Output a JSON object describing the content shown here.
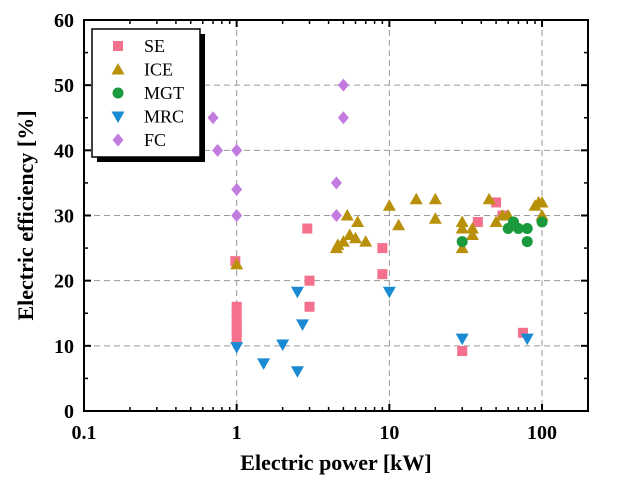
{
  "chart_data": {
    "type": "scatter",
    "title": "",
    "xlabel": "Electric power [kW]",
    "ylabel": "Electric efficiency [%]",
    "xscale": "log",
    "xlim": [
      0.1,
      200
    ],
    "ylim": [
      0,
      60
    ],
    "xticks": [
      0.1,
      1,
      10,
      100
    ],
    "xtick_labels": [
      "0.1",
      "1",
      "10",
      "100"
    ],
    "yticks": [
      0,
      10,
      20,
      30,
      40,
      50,
      60
    ],
    "ytick_labels": [
      "0",
      "10",
      "20",
      "30",
      "40",
      "50",
      "60"
    ],
    "grid": true,
    "legend_position": "top-left",
    "series": [
      {
        "name": "SE",
        "marker": "square",
        "color": "#f4708c",
        "points": [
          [
            0.98,
            23
          ],
          [
            1.0,
            16
          ],
          [
            1.0,
            15
          ],
          [
            1.0,
            14
          ],
          [
            1.0,
            13
          ],
          [
            1.0,
            12.2
          ],
          [
            1.0,
            11.3
          ],
          [
            2.9,
            28
          ],
          [
            3.0,
            20
          ],
          [
            3.0,
            16
          ],
          [
            9.0,
            25
          ],
          [
            9.0,
            21
          ],
          [
            30,
            9.2
          ],
          [
            38,
            29
          ],
          [
            50,
            32
          ],
          [
            55,
            30
          ],
          [
            75,
            12
          ]
        ]
      },
      {
        "name": "ICE",
        "marker": "triangle-up",
        "color": "#b8900a",
        "points": [
          [
            1.0,
            22.5
          ],
          [
            4.5,
            25
          ],
          [
            4.6,
            25.5
          ],
          [
            5.0,
            26
          ],
          [
            5.3,
            30
          ],
          [
            5.5,
            27
          ],
          [
            6.0,
            26.5
          ],
          [
            6.2,
            29
          ],
          [
            7.0,
            26
          ],
          [
            10,
            31.5
          ],
          [
            11.5,
            28.5
          ],
          [
            15,
            32.5
          ],
          [
            20,
            32.5
          ],
          [
            20,
            29.5
          ],
          [
            30,
            29
          ],
          [
            30,
            28
          ],
          [
            30,
            25
          ],
          [
            35,
            28
          ],
          [
            35,
            27
          ],
          [
            45,
            32.5
          ],
          [
            50,
            29
          ],
          [
            55,
            30
          ],
          [
            60,
            30
          ],
          [
            90,
            31.5
          ],
          [
            95,
            32
          ],
          [
            100,
            32
          ],
          [
            100,
            30
          ]
        ]
      },
      {
        "name": "MGT",
        "marker": "circle",
        "color": "#1a9a3c",
        "points": [
          [
            30,
            26
          ],
          [
            60,
            28
          ],
          [
            65,
            29
          ],
          [
            70,
            28
          ],
          [
            80,
            28
          ],
          [
            80,
            26
          ],
          [
            100,
            29
          ]
        ]
      },
      {
        "name": "MRC",
        "marker": "triangle-down",
        "color": "#1a8ad2",
        "points": [
          [
            1.0,
            9.8
          ],
          [
            1.5,
            7.3
          ],
          [
            2.0,
            10.2
          ],
          [
            2.5,
            18.3
          ],
          [
            2.5,
            6.1
          ],
          [
            2.7,
            13.3
          ],
          [
            10,
            18.3
          ],
          [
            30,
            11.1
          ],
          [
            80,
            11.1
          ]
        ]
      },
      {
        "name": "FC",
        "marker": "diamond",
        "color": "#c27ce0",
        "points": [
          [
            0.7,
            45
          ],
          [
            0.75,
            40
          ],
          [
            1.0,
            40
          ],
          [
            1.0,
            34
          ],
          [
            1.0,
            30
          ],
          [
            4.5,
            35
          ],
          [
            4.5,
            30
          ],
          [
            5.0,
            50
          ],
          [
            5.0,
            45
          ]
        ]
      }
    ]
  }
}
